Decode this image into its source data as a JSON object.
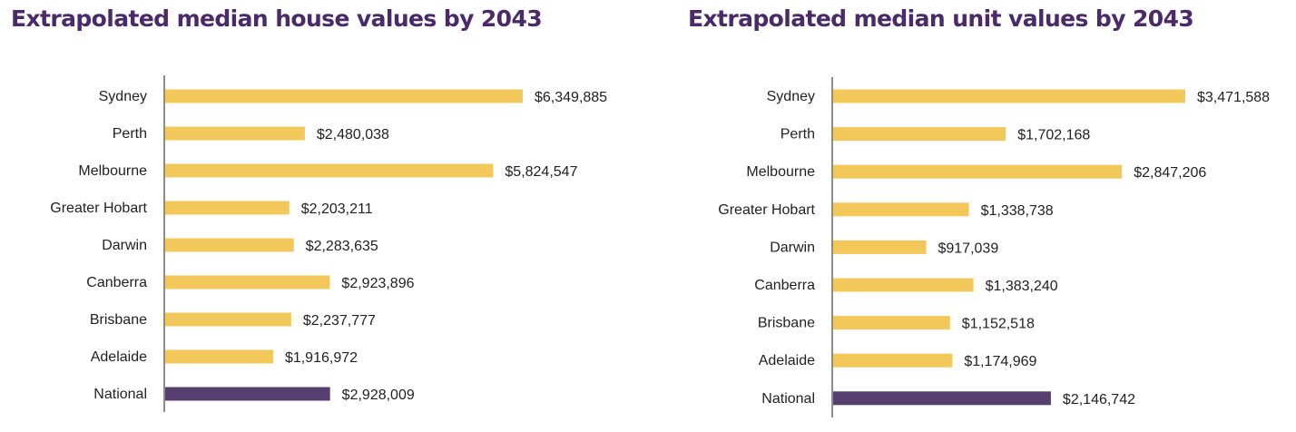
{
  "colors": {
    "title": "#4a2a6a",
    "bar": "#f2c85b",
    "highlight": "#563f6e",
    "axis": "#666666"
  },
  "chart_data": [
    {
      "type": "bar",
      "orientation": "horizontal",
      "title": "Extrapolated median house values by 2043",
      "categories": [
        "Sydney",
        "Perth",
        "Melbourne",
        "Greater Hobart",
        "Darwin",
        "Canberra",
        "Brisbane",
        "Adelaide",
        "National"
      ],
      "values": [
        6349885,
        2480038,
        5824547,
        2203211,
        2283635,
        2923896,
        2237777,
        1916972,
        2928009
      ],
      "value_labels": [
        "$6,349,885",
        "$2,480,038",
        "$5,824,547",
        "$2,203,211",
        "$2,283,635",
        "$2,923,896",
        "$2,237,777",
        "$1,916,972",
        "$2,928,009"
      ],
      "highlight": "National",
      "xlabel": "",
      "ylabel": "",
      "xlim": [
        0,
        6500000
      ],
      "grid": false,
      "legend": "none"
    },
    {
      "type": "bar",
      "orientation": "horizontal",
      "title": "Extrapolated median unit values by 2043",
      "categories": [
        "Sydney",
        "Perth",
        "Melbourne",
        "Greater Hobart",
        "Darwin",
        "Canberra",
        "Brisbane",
        "Adelaide",
        "National"
      ],
      "values": [
        3471588,
        1702168,
        2847206,
        1338738,
        917039,
        1383240,
        1152518,
        1174969,
        2146742
      ],
      "value_labels": [
        "$3,471,588",
        "$1,702,168",
        "$2,847,206",
        "$1,338,738",
        "$917,039",
        "$1,383,240",
        "$1,152,518",
        "$1,174,969",
        "$2,146,742"
      ],
      "highlight": "National",
      "xlabel": "",
      "ylabel": "",
      "xlim": [
        0,
        3550000
      ],
      "grid": false,
      "legend": "none"
    }
  ]
}
